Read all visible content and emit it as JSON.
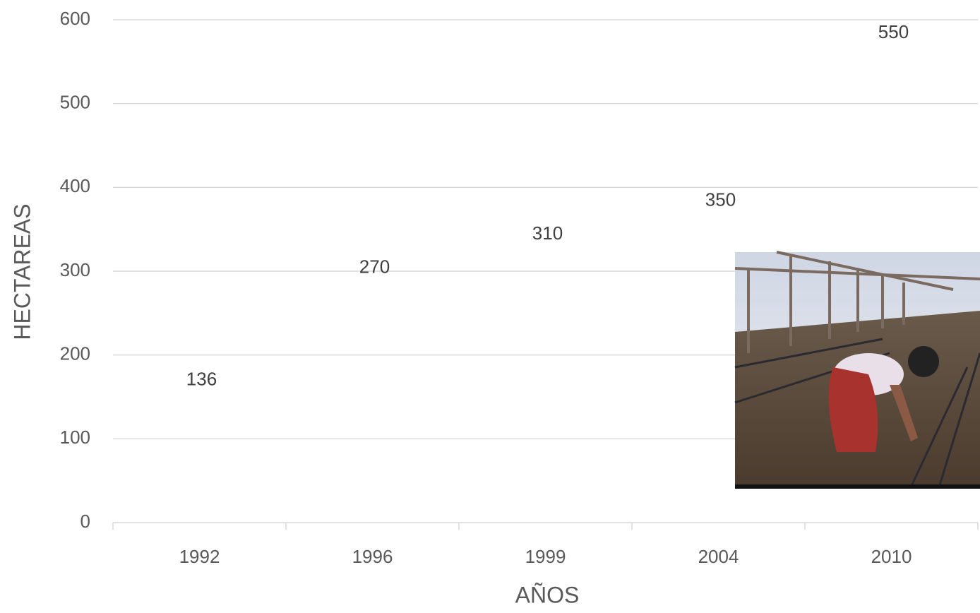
{
  "chart_data": {
    "type": "line",
    "categories": [
      "1992",
      "1996",
      "1999",
      "2004",
      "2010"
    ],
    "series": [
      {
        "name": "Hectareas",
        "color": "#4a7ebb",
        "values": [
          136,
          270,
          310,
          350,
          550
        ]
      }
    ],
    "ylim": [
      0,
      600
    ],
    "yticks": [
      0,
      100,
      200,
      300,
      400,
      500,
      600
    ],
    "grid": true,
    "xlabel": "AÑOS",
    "ylabel": "HECTAREAS",
    "data_labels": true
  }
}
